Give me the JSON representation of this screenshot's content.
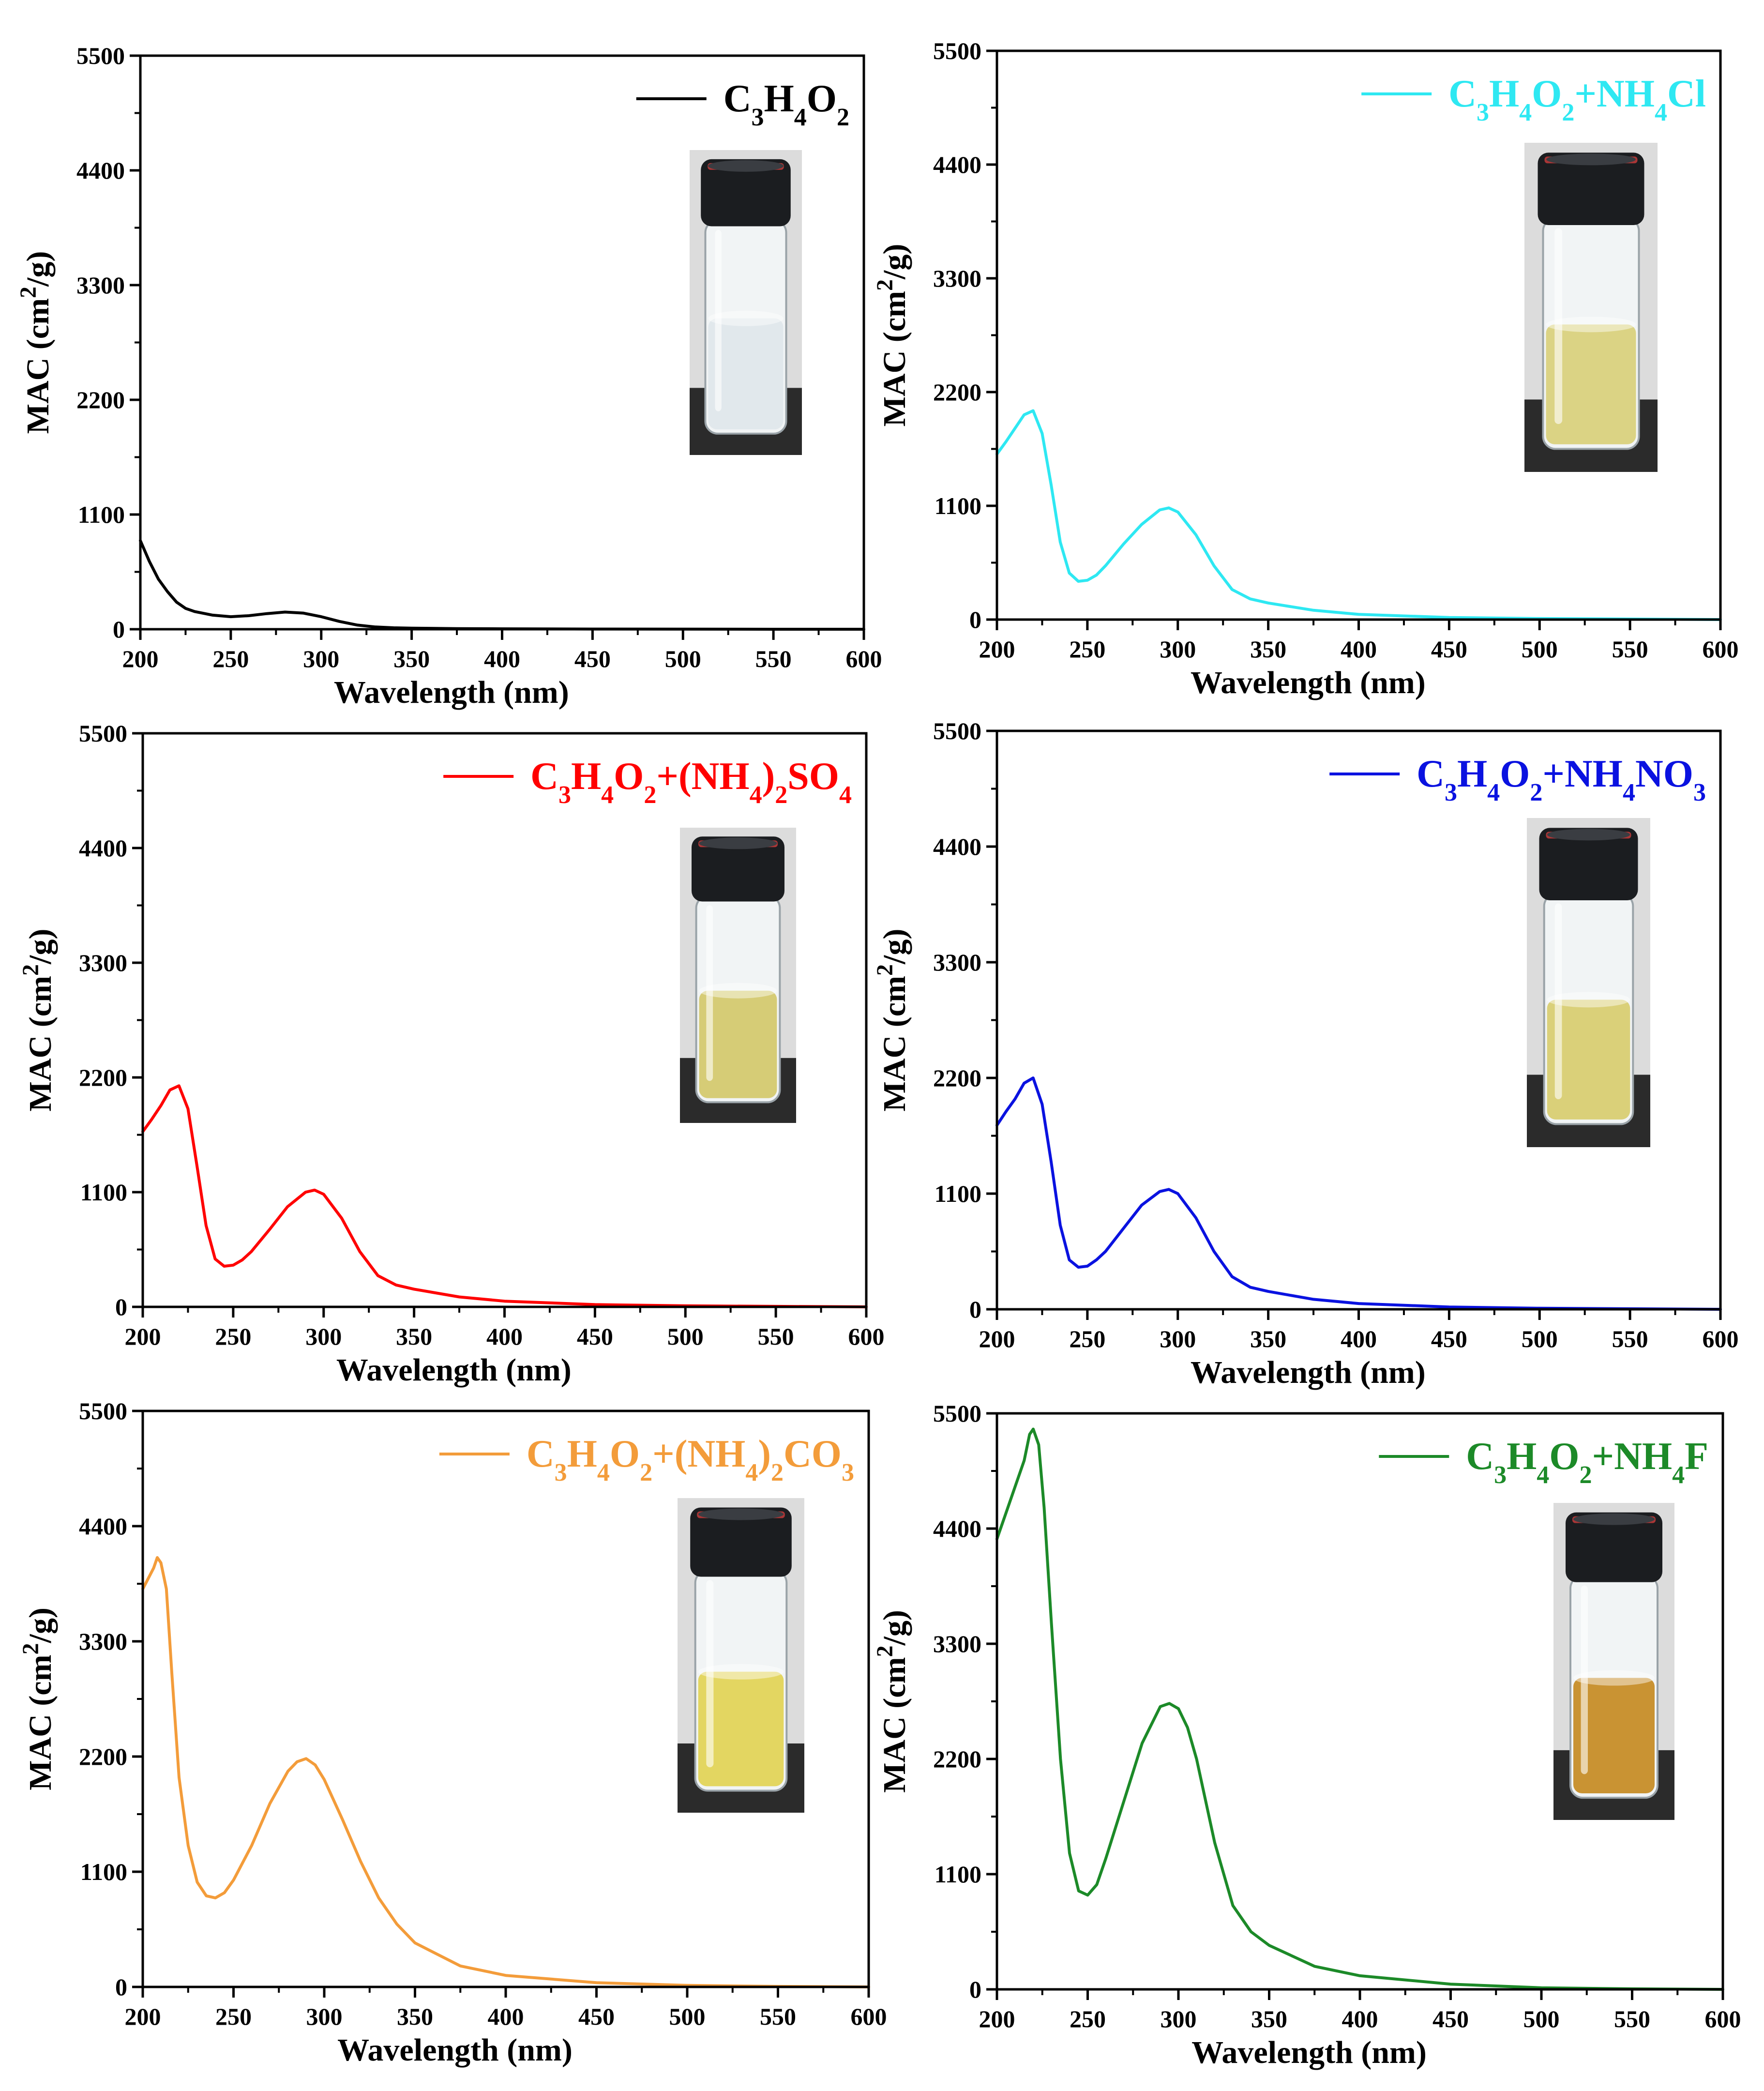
{
  "figure_title": "",
  "chart_data": [
    {
      "type": "line",
      "panel": "top-left",
      "xlabel": "Wavelength (nm)",
      "ylabel": "MAC (cm2/g)",
      "xlim": [
        200,
        600
      ],
      "ylim": [
        0,
        5500
      ],
      "xticks": [
        200,
        250,
        300,
        350,
        400,
        450,
        500,
        550,
        600
      ],
      "yticks": [
        0,
        1100,
        2200,
        3300,
        4400,
        5500
      ],
      "legend_location": "top-right",
      "series": [
        {
          "name": "C3H4O2",
          "color": "#000000",
          "legend_parts": [
            [
              "C",
              ""
            ],
            [
              "3",
              "sub"
            ],
            [
              "H",
              ""
            ],
            [
              "4",
              "sub"
            ],
            [
              "O",
              ""
            ],
            [
              "2",
              "sub"
            ]
          ],
          "x": [
            200,
            205,
            210,
            215,
            220,
            225,
            230,
            240,
            250,
            260,
            270,
            280,
            290,
            300,
            310,
            320,
            330,
            340,
            350,
            375,
            400,
            450,
            500,
            550,
            600
          ],
          "y": [
            850,
            650,
            480,
            360,
            260,
            200,
            170,
            135,
            120,
            130,
            150,
            165,
            155,
            120,
            75,
            40,
            22,
            14,
            10,
            6,
            4,
            2,
            1,
            0,
            0
          ]
        }
      ],
      "inset": {
        "liquid": "clear",
        "liquid_color": "#dfe6ea"
      }
    },
    {
      "type": "line",
      "panel": "top-right",
      "xlabel": "Wavelength (nm)",
      "ylabel": "MAC (cm2/g)",
      "xlim": [
        200,
        600
      ],
      "ylim": [
        0,
        5500
      ],
      "xticks": [
        200,
        250,
        300,
        350,
        400,
        450,
        500,
        550,
        600
      ],
      "yticks": [
        0,
        1100,
        2200,
        3300,
        4400,
        5500
      ],
      "legend_location": "top-right",
      "series": [
        {
          "name": "C3H4O2+NH4Cl",
          "color": "#2ee8f2",
          "legend_parts": [
            [
              "C",
              ""
            ],
            [
              "3",
              "sub"
            ],
            [
              "H",
              ""
            ],
            [
              "4",
              "sub"
            ],
            [
              "O",
              ""
            ],
            [
              "2",
              "sub"
            ],
            [
              "+NH",
              ""
            ],
            [
              "4",
              "sub"
            ],
            [
              "Cl",
              ""
            ]
          ],
          "x": [
            200,
            205,
            210,
            215,
            220,
            225,
            230,
            235,
            240,
            245,
            250,
            255,
            260,
            270,
            280,
            290,
            295,
            300,
            310,
            320,
            330,
            340,
            350,
            375,
            400,
            450,
            500,
            550,
            600
          ],
          "y": [
            1600,
            1720,
            1850,
            1980,
            2020,
            1800,
            1300,
            750,
            450,
            370,
            380,
            430,
            520,
            730,
            920,
            1060,
            1080,
            1040,
            820,
            520,
            290,
            200,
            160,
            90,
            50,
            20,
            10,
            5,
            0
          ]
        }
      ],
      "inset": {
        "liquid": "pale yellow",
        "liquid_color": "#d9cf7a"
      }
    },
    {
      "type": "line",
      "panel": "middle-left",
      "xlabel": "Wavelength (nm)",
      "ylabel": "MAC (cm2/g)",
      "xlim": [
        200,
        600
      ],
      "ylim": [
        0,
        5500
      ],
      "xticks": [
        200,
        250,
        300,
        350,
        400,
        450,
        500,
        550,
        600
      ],
      "yticks": [
        0,
        1100,
        2200,
        3300,
        4400,
        5500
      ],
      "legend_location": "top-right",
      "series": [
        {
          "name": "C3H4O2+(NH4)2SO4",
          "color": "#ff0000",
          "legend_parts": [
            [
              "C",
              ""
            ],
            [
              "3",
              "sub"
            ],
            [
              "H",
              ""
            ],
            [
              "4",
              "sub"
            ],
            [
              "O",
              ""
            ],
            [
              "2",
              "sub"
            ],
            [
              "+(NH",
              ""
            ],
            [
              "4",
              "sub"
            ],
            [
              ")",
              ""
            ],
            [
              "2",
              "sub"
            ],
            [
              "SO",
              ""
            ],
            [
              "4",
              "sub"
            ]
          ],
          "x": [
            200,
            205,
            210,
            215,
            220,
            225,
            230,
            235,
            240,
            245,
            250,
            255,
            260,
            270,
            280,
            290,
            295,
            300,
            310,
            320,
            330,
            340,
            350,
            375,
            400,
            450,
            500,
            550,
            600
          ],
          "y": [
            1680,
            1800,
            1930,
            2080,
            2120,
            1900,
            1350,
            780,
            460,
            390,
            400,
            450,
            530,
            740,
            960,
            1100,
            1120,
            1080,
            850,
            530,
            300,
            210,
            170,
            95,
            55,
            22,
            10,
            5,
            0
          ]
        }
      ],
      "inset": {
        "liquid": "pale yellow",
        "liquid_color": "#d4c86a"
      }
    },
    {
      "type": "line",
      "panel": "middle-right",
      "xlabel": "Wavelength (nm)",
      "ylabel": "MAC (cm2/g)",
      "xlim": [
        200,
        600
      ],
      "ylim": [
        0,
        5500
      ],
      "xticks": [
        200,
        250,
        300,
        350,
        400,
        450,
        500,
        550,
        600
      ],
      "yticks": [
        0,
        1100,
        2200,
        3300,
        4400,
        5500
      ],
      "legend_location": "top-right",
      "series": [
        {
          "name": "C3H4O2+NH4NO3",
          "color": "#0a12e0",
          "legend_parts": [
            [
              "C",
              ""
            ],
            [
              "3",
              "sub"
            ],
            [
              "H",
              ""
            ],
            [
              "4",
              "sub"
            ],
            [
              "O",
              ""
            ],
            [
              "2",
              "sub"
            ],
            [
              "+NH",
              ""
            ],
            [
              "4",
              "sub"
            ],
            [
              "NO",
              ""
            ],
            [
              "3",
              "sub"
            ]
          ],
          "x": [
            200,
            205,
            210,
            215,
            220,
            225,
            230,
            235,
            240,
            245,
            250,
            255,
            260,
            270,
            280,
            290,
            295,
            300,
            310,
            320,
            330,
            340,
            350,
            375,
            400,
            450,
            500,
            550,
            600
          ],
          "y": [
            1750,
            1880,
            2000,
            2150,
            2200,
            1950,
            1400,
            800,
            470,
            400,
            410,
            470,
            550,
            770,
            990,
            1120,
            1140,
            1100,
            870,
            550,
            310,
            210,
            170,
            95,
            55,
            22,
            10,
            5,
            0
          ]
        }
      ],
      "inset": {
        "liquid": "pale yellow",
        "liquid_color": "#d8cc6e"
      }
    },
    {
      "type": "line",
      "panel": "bottom-left",
      "xlabel": "Wavelength (nm)",
      "ylabel": "MAC (cm2/g)",
      "xlim": [
        200,
        600
      ],
      "ylim": [
        0,
        5500
      ],
      "xticks": [
        200,
        250,
        300,
        350,
        400,
        450,
        500,
        550,
        600
      ],
      "yticks": [
        0,
        1100,
        2200,
        3300,
        4400,
        5500
      ],
      "legend_location": "top-right",
      "series": [
        {
          "name": "C3H4O2+(NH4)2CO3",
          "color": "#f39c3a",
          "legend_parts": [
            [
              "C",
              ""
            ],
            [
              "3",
              "sub"
            ],
            [
              "H",
              ""
            ],
            [
              "4",
              "sub"
            ],
            [
              "O",
              ""
            ],
            [
              "2",
              "sub"
            ],
            [
              "+(NH",
              ""
            ],
            [
              "4",
              "sub"
            ],
            [
              ")",
              ""
            ],
            [
              "2",
              "sub"
            ],
            [
              "CO",
              ""
            ],
            [
              "3",
              "sub"
            ]
          ],
          "x": [
            200,
            203,
            206,
            208,
            210,
            213,
            216,
            220,
            225,
            230,
            235,
            240,
            245,
            250,
            260,
            270,
            280,
            285,
            290,
            295,
            300,
            310,
            320,
            330,
            340,
            350,
            375,
            400,
            450,
            500,
            550,
            600
          ],
          "y": [
            3800,
            3900,
            4000,
            4100,
            4050,
            3800,
            3000,
            2000,
            1350,
            1000,
            870,
            850,
            900,
            1020,
            1350,
            1750,
            2060,
            2150,
            2180,
            2120,
            1980,
            1600,
            1200,
            850,
            600,
            420,
            200,
            110,
            40,
            15,
            5,
            0
          ]
        }
      ],
      "inset": {
        "liquid": "yellow",
        "liquid_color": "#e2d254"
      }
    },
    {
      "type": "line",
      "panel": "bottom-right",
      "xlabel": "Wavelength (nm)",
      "ylabel": "MAC (cm2/g)",
      "xlim": [
        200,
        600
      ],
      "ylim": [
        0,
        5500
      ],
      "xticks": [
        200,
        250,
        300,
        350,
        400,
        450,
        500,
        550,
        600
      ],
      "yticks": [
        0,
        1100,
        2200,
        3300,
        4400,
        5500
      ],
      "legend_location": "top-right",
      "series": [
        {
          "name": "C3H4O2+NH4F",
          "color": "#1c8a28",
          "legend_parts": [
            [
              "C",
              ""
            ],
            [
              "3",
              "sub"
            ],
            [
              "H",
              ""
            ],
            [
              "4",
              "sub"
            ],
            [
              "O",
              ""
            ],
            [
              "2",
              "sub"
            ],
            [
              "+NH",
              ""
            ],
            [
              "4",
              "sub"
            ],
            [
              "F",
              ""
            ]
          ],
          "x": [
            200,
            205,
            210,
            215,
            218,
            220,
            223,
            226,
            230,
            235,
            240,
            245,
            250,
            255,
            260,
            270,
            280,
            290,
            295,
            300,
            305,
            310,
            320,
            330,
            340,
            350,
            375,
            400,
            450,
            500,
            550,
            600
          ],
          "y": [
            4300,
            4550,
            4800,
            5050,
            5300,
            5350,
            5200,
            4600,
            3500,
            2200,
            1300,
            940,
            900,
            1000,
            1250,
            1800,
            2350,
            2700,
            2730,
            2680,
            2500,
            2200,
            1400,
            800,
            550,
            420,
            220,
            130,
            50,
            15,
            5,
            0
          ]
        }
      ],
      "inset": {
        "liquid": "amber",
        "liquid_color": "#c58a22"
      }
    }
  ]
}
